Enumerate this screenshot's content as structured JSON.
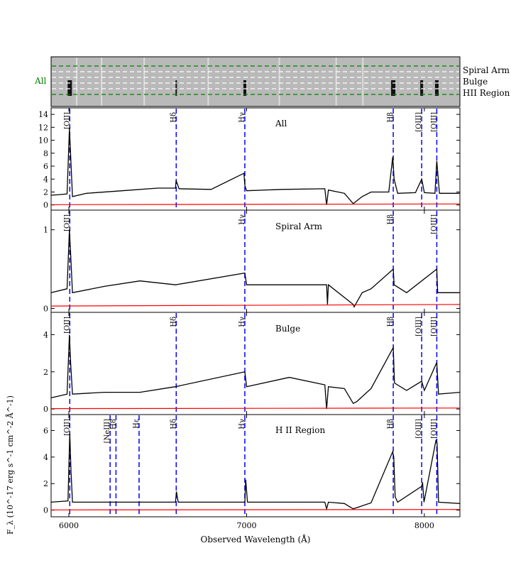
{
  "figure": {
    "xlabel": "Observed Wavelength (Å)",
    "ylabel": "F_λ (10^-17 erg s^-1 cm^-2 Å^-1)",
    "xlim": [
      5900,
      8200
    ],
    "xticks": [
      6000,
      7000,
      8000
    ],
    "colors": {
      "spectrum": "#000000",
      "error": "#ff0000",
      "lines": "#0000ff",
      "aperture": "#008000",
      "aperture_inner": "#ffffff"
    }
  },
  "image_strip": {
    "left_label": "All",
    "right_labels": [
      "Spiral Arm",
      "Bulge",
      "HII Region"
    ]
  },
  "line_positions": {
    "[OII]": 6005,
    "[NeIII]": 6232,
    "Hδ": 6604,
    "Hγ": 6990,
    "Hβ": 7825,
    "[OIII]": 7985,
    "[OIII]2": 8070,
    "H8": 6265,
    "Hε": 6395
  },
  "chart_data": [
    {
      "type": "line",
      "title": "All",
      "ylim": [
        -0.8,
        15
      ],
      "yticks": [
        0,
        2,
        4,
        6,
        8,
        10,
        12,
        14
      ],
      "line_ids": [
        "[OII]",
        "Hδ",
        "Hγ",
        "Hβ",
        "[OIII]",
        "[OIII]2"
      ],
      "line_labels": [
        "[OII]",
        "Hδ",
        "Hγ",
        "Hβ",
        "[OIII]",
        "[OIII]"
      ],
      "series": [
        {
          "x": [
            5900,
            5950,
            5990,
            6003,
            6008,
            6020,
            6100,
            6300,
            6500,
            6600,
            6603,
            6620,
            6800,
            6985,
            6990,
            7000,
            7200,
            7440,
            7450,
            7460,
            7550,
            7600,
            7650,
            7700,
            7800,
            7822,
            7830,
            7850,
            7950,
            7985,
            8000,
            8060,
            8070,
            8085,
            8200
          ],
          "y": [
            1.5,
            1.6,
            1.7,
            11.8,
            9.0,
            1.3,
            1.8,
            2.2,
            2.6,
            2.6,
            3.8,
            2.5,
            2.4,
            4.9,
            3.0,
            2.2,
            2.4,
            2.5,
            0,
            2.3,
            1.8,
            0.2,
            1.3,
            2.0,
            2.0,
            7.4,
            4.0,
            1.8,
            1.9,
            4.0,
            1.9,
            1.8,
            6.8,
            1.8,
            1.8
          ]
        },
        {
          "x": [
            5900,
            8200
          ],
          "y": [
            0.05,
            0.15
          ]
        }
      ]
    },
    {
      "type": "line",
      "title": "Spiral Arm",
      "ylim": [
        -0.05,
        1.25
      ],
      "yticks": [
        0,
        1
      ],
      "line_ids": [
        "[OII]",
        "Hγ",
        "Hβ",
        "[OIII]2"
      ],
      "line_labels": [
        "[OII]",
        "Hγ",
        "Hβ",
        "[OIII]"
      ],
      "series": [
        {
          "x": [
            5900,
            5990,
            6003,
            6010,
            6020,
            6200,
            6400,
            6600,
            6990,
            7000,
            7300,
            7450,
            7455,
            7460,
            7600,
            7605,
            7650,
            7700,
            7825,
            7830,
            7900,
            8070,
            8075,
            8200
          ],
          "y": [
            0.2,
            0.25,
            1.0,
            0.7,
            0.2,
            0.28,
            0.35,
            0.3,
            0.45,
            0.3,
            0.3,
            0.3,
            0.05,
            0.3,
            0.05,
            0.02,
            0.2,
            0.25,
            0.5,
            0.3,
            0.2,
            0.5,
            0.2,
            0.2
          ]
        },
        {
          "x": [
            5900,
            8200
          ],
          "y": [
            0.03,
            0.05
          ]
        }
      ]
    },
    {
      "type": "line",
      "title": "Bulge",
      "ylim": [
        -0.3,
        5.2
      ],
      "yticks": [
        0,
        2,
        4
      ],
      "line_ids": [
        "[OII]",
        "Hδ",
        "Hγ",
        "Hβ",
        "[OIII]",
        "[OIII]2"
      ],
      "line_labels": [
        "[OII]",
        "Hδ",
        "Hγ",
        "Hβ",
        "[OIII]",
        "[OIII]"
      ],
      "series": [
        {
          "x": [
            5900,
            5990,
            6003,
            6010,
            6020,
            6200,
            6400,
            6600,
            6990,
            7000,
            7240,
            7440,
            7450,
            7460,
            7550,
            7600,
            7620,
            7700,
            7825,
            7832,
            7900,
            7985,
            8000,
            8070,
            8080,
            8200
          ],
          "y": [
            0.6,
            0.8,
            4.0,
            2.5,
            0.8,
            0.9,
            0.9,
            1.2,
            2.0,
            1.2,
            1.7,
            1.3,
            0,
            1.2,
            1.1,
            0.3,
            0.4,
            1.1,
            3.3,
            1.4,
            1.0,
            1.5,
            1.0,
            2.5,
            0.8,
            0.9
          ]
        },
        {
          "x": [
            5900,
            8200
          ],
          "y": [
            0.02,
            0.05
          ]
        }
      ]
    },
    {
      "type": "line",
      "title": "H II Region",
      "ylim": [
        -0.5,
        7.2
      ],
      "yticks": [
        0,
        2,
        4,
        6
      ],
      "line_ids": [
        "[OII]",
        "[NeIII]",
        "H8",
        "Hε",
        "Hδ",
        "Hγ",
        "Hβ",
        "[OIII]",
        "[OIII]2"
      ],
      "line_labels": [
        "[OII]",
        "[NeIII]",
        "H8",
        "Hε",
        "Hδ",
        "Hγ",
        "Hβ",
        "[OIII]",
        "[OIII]"
      ],
      "series": [
        {
          "x": [
            5900,
            5995,
            6005,
            6012,
            6020,
            6600,
            6605,
            6615,
            6990,
            6995,
            7005,
            7440,
            7450,
            7460,
            7550,
            7600,
            7700,
            7822,
            7828,
            7836,
            7850,
            7985,
            7990,
            7998,
            8066,
            8072,
            8080,
            8200
          ],
          "y": [
            0.6,
            0.7,
            5.8,
            3.0,
            0.6,
            0.6,
            1.4,
            0.6,
            0.6,
            2.3,
            0.6,
            0.6,
            0.1,
            0.6,
            0.5,
            0.1,
            0.55,
            4.4,
            4.0,
            1.0,
            0.6,
            1.8,
            2.1,
            0.6,
            5.3,
            5.0,
            0.6,
            0.5
          ]
        },
        {
          "x": [
            5900,
            8200
          ],
          "y": [
            0.02,
            0.05
          ]
        }
      ]
    }
  ]
}
